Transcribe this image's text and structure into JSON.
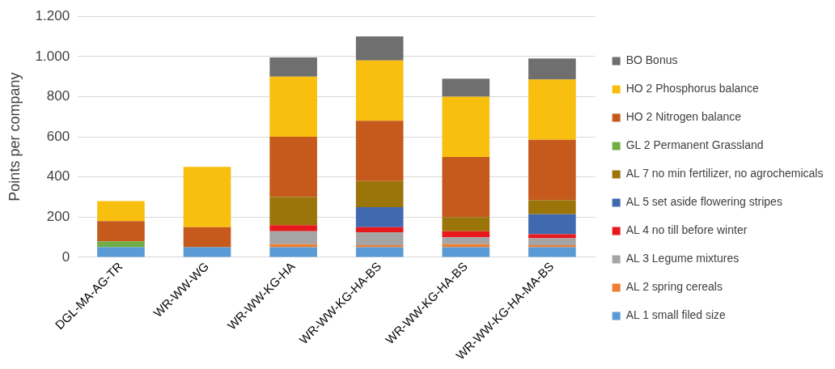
{
  "chart_data": {
    "type": "bar",
    "stacked": true,
    "ylabel": "Points per company",
    "categories": [
      "DGL-MA-AG-TR",
      "WR-WW-WG",
      "WR-WW-KG-HA",
      "WR-WW-KG-HA-BS",
      "WR-WW-KG-HA-BS",
      "WR-WW-KG-HA-MA-BS"
    ],
    "series": [
      {
        "name": "AL 1 small filed size",
        "color": "#5b9bd5",
        "values": [
          50,
          50,
          50,
          50,
          50,
          50
        ]
      },
      {
        "name": "AL 2 spring cereals",
        "color": "#ed7d31",
        "values": [
          0,
          0,
          15,
          10,
          15,
          10
        ]
      },
      {
        "name": "AL 3 Legume mixtures",
        "color": "#a5a5a5",
        "values": [
          0,
          0,
          65,
          65,
          35,
          35
        ]
      },
      {
        "name": "AL 4 no till before winter",
        "color": "#e8191d",
        "values": [
          0,
          0,
          30,
          25,
          30,
          20
        ]
      },
      {
        "name": "AL 5 set aside flowering stripes",
        "color": "#4169b0",
        "values": [
          0,
          0,
          0,
          100,
          0,
          100
        ]
      },
      {
        "name": "AL 7 no min fertilizer, no agrochemicals",
        "color": "#9c750a",
        "values": [
          0,
          0,
          140,
          130,
          70,
          70
        ]
      },
      {
        "name": "GL 2 Permanent Grassland",
        "color": "#70ad47",
        "values": [
          30,
          0,
          0,
          0,
          0,
          0
        ]
      },
      {
        "name": "HO 2 Nitrogen balance",
        "color": "#c55a1c",
        "values": [
          100,
          100,
          300,
          300,
          300,
          300
        ]
      },
      {
        "name": "HO 2 Phosphorus balance",
        "color": "#f9bf0f",
        "values": [
          100,
          300,
          300,
          300,
          300,
          300
        ]
      },
      {
        "name": "BO Bonus",
        "color": "#6f6f6f",
        "values": [
          0,
          0,
          95,
          120,
          90,
          105
        ]
      }
    ],
    "ylim": [
      0,
      1200
    ],
    "yticks": [
      0,
      200,
      400,
      600,
      800,
      {
        "value": 1000,
        "label": "1.000"
      },
      {
        "value": 1200,
        "label": "1.200"
      }
    ],
    "grid": "y",
    "legend": "right"
  }
}
